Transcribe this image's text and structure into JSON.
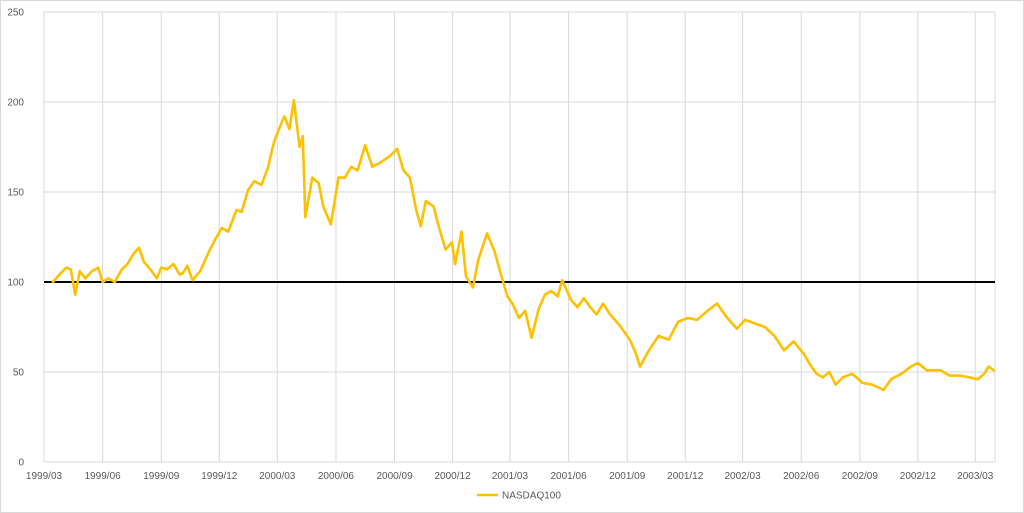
{
  "chart_data": {
    "type": "line",
    "title": "",
    "xlabel": "",
    "ylabel": "",
    "ylim": [
      0,
      250
    ],
    "yticks": [
      0,
      50,
      100,
      150,
      200,
      250
    ],
    "xticks": [
      "1999/03",
      "1999/06",
      "1999/09",
      "1999/12",
      "2000/03",
      "2000/06",
      "2000/09",
      "2000/12",
      "2001/03",
      "2001/06",
      "2001/09",
      "2001/12",
      "2002/03",
      "2002/06",
      "2002/09",
      "2002/12",
      "2003/03"
    ],
    "xlim": [
      "1999/03",
      "2003/04"
    ],
    "grid": {
      "horizontal": true,
      "vertical": true
    },
    "legend": {
      "position": "bottom",
      "entries": [
        "NASDAQ100"
      ]
    },
    "reference_line": {
      "value": 100,
      "color": "#000000"
    },
    "colors": {
      "series": "#ffc000",
      "grid": "#d9d9d9",
      "reference": "#000000"
    },
    "series": [
      {
        "name": "NASDAQ100",
        "points": [
          [
            "1999/03/15",
            100
          ],
          [
            "1999/03/25",
            104
          ],
          [
            "1999/04/05",
            108
          ],
          [
            "1999/04/12",
            107
          ],
          [
            "1999/04/19",
            93
          ],
          [
            "1999/04/26",
            106
          ],
          [
            "1999/05/05",
            102
          ],
          [
            "1999/05/15",
            106
          ],
          [
            "1999/05/25",
            108
          ],
          [
            "1999/06/01",
            100
          ],
          [
            "1999/06/10",
            102
          ],
          [
            "1999/06/20",
            100
          ],
          [
            "1999/07/01",
            107
          ],
          [
            "1999/07/10",
            110
          ],
          [
            "1999/07/20",
            116
          ],
          [
            "1999/07/28",
            119
          ],
          [
            "1999/08/05",
            111
          ],
          [
            "1999/08/15",
            107
          ],
          [
            "1999/08/25",
            102
          ],
          [
            "1999/09/01",
            108
          ],
          [
            "1999/09/10",
            107
          ],
          [
            "1999/09/20",
            110
          ],
          [
            "1999/09/30",
            104
          ],
          [
            "1999/10/05",
            105
          ],
          [
            "1999/10/12",
            109
          ],
          [
            "1999/10/20",
            101
          ],
          [
            "1999/11/01",
            106
          ],
          [
            "1999/11/15",
            117
          ],
          [
            "1999/11/25",
            124
          ],
          [
            "1999/12/05",
            130
          ],
          [
            "1999/12/15",
            128
          ],
          [
            "1999/12/28",
            140
          ],
          [
            "2000/01/05",
            139
          ],
          [
            "2000/01/15",
            151
          ],
          [
            "2000/01/25",
            156
          ],
          [
            "2000/02/05",
            154
          ],
          [
            "2000/02/15",
            163
          ],
          [
            "2000/02/25",
            178
          ],
          [
            "2000/03/05",
            186
          ],
          [
            "2000/03/12",
            192
          ],
          [
            "2000/03/20",
            185
          ],
          [
            "2000/03/27",
            201
          ],
          [
            "2000/04/05",
            175
          ],
          [
            "2000/04/10",
            181
          ],
          [
            "2000/04/14",
            136
          ],
          [
            "2000/04/25",
            158
          ],
          [
            "2000/05/05",
            155
          ],
          [
            "2000/05/12",
            142
          ],
          [
            "2000/05/24",
            132
          ],
          [
            "2000/06/05",
            158
          ],
          [
            "2000/06/15",
            158
          ],
          [
            "2000/06/25",
            164
          ],
          [
            "2000/07/05",
            162
          ],
          [
            "2000/07/17",
            176
          ],
          [
            "2000/07/28",
            164
          ],
          [
            "2000/08/08",
            166
          ],
          [
            "2000/08/25",
            170
          ],
          [
            "2000/09/05",
            174
          ],
          [
            "2000/09/15",
            162
          ],
          [
            "2000/09/25",
            158
          ],
          [
            "2000/10/05",
            140
          ],
          [
            "2000/10/12",
            131
          ],
          [
            "2000/10/20",
            145
          ],
          [
            "2000/11/01",
            142
          ],
          [
            "2000/11/10",
            130
          ],
          [
            "2000/11/20",
            118
          ],
          [
            "2000/11/30",
            122
          ],
          [
            "2000/12/05",
            110
          ],
          [
            "2000/12/15",
            128
          ],
          [
            "2000/12/22",
            103
          ],
          [
            "2001/01/02",
            97
          ],
          [
            "2001/01/10",
            112
          ],
          [
            "2001/01/24",
            127
          ],
          [
            "2001/02/05",
            117
          ],
          [
            "2001/02/15",
            104
          ],
          [
            "2001/02/25",
            92
          ],
          [
            "2001/03/05",
            88
          ],
          [
            "2001/03/15",
            80
          ],
          [
            "2001/03/25",
            84
          ],
          [
            "2001/04/04",
            69
          ],
          [
            "2001/04/15",
            85
          ],
          [
            "2001/04/25",
            93
          ],
          [
            "2001/05/05",
            95
          ],
          [
            "2001/05/15",
            92
          ],
          [
            "2001/05/22",
            101
          ],
          [
            "2001/06/05",
            90
          ],
          [
            "2001/06/15",
            86
          ],
          [
            "2001/06/25",
            91
          ],
          [
            "2001/07/05",
            86
          ],
          [
            "2001/07/15",
            82
          ],
          [
            "2001/07/25",
            88
          ],
          [
            "2001/08/05",
            82
          ],
          [
            "2001/08/20",
            76
          ],
          [
            "2001/09/05",
            68
          ],
          [
            "2001/09/15",
            60
          ],
          [
            "2001/09/21",
            53
          ],
          [
            "2001/10/05",
            62
          ],
          [
            "2001/10/20",
            70
          ],
          [
            "2001/11/05",
            68
          ],
          [
            "2001/11/20",
            78
          ],
          [
            "2001/12/05",
            80
          ],
          [
            "2001/12/20",
            79
          ],
          [
            "2002/01/05",
            84
          ],
          [
            "2002/01/20",
            88
          ],
          [
            "2002/02/05",
            80
          ],
          [
            "2002/02/20",
            74
          ],
          [
            "2002/03/05",
            79
          ],
          [
            "2002/03/20",
            77
          ],
          [
            "2002/04/05",
            75
          ],
          [
            "2002/04/20",
            70
          ],
          [
            "2002/05/05",
            62
          ],
          [
            "2002/05/20",
            67
          ],
          [
            "2002/06/05",
            60
          ],
          [
            "2002/06/15",
            54
          ],
          [
            "2002/06/25",
            49
          ],
          [
            "2002/07/05",
            47
          ],
          [
            "2002/07/15",
            50
          ],
          [
            "2002/07/25",
            43
          ],
          [
            "2002/08/05",
            47
          ],
          [
            "2002/08/20",
            49
          ],
          [
            "2002/09/05",
            44
          ],
          [
            "2002/09/20",
            43
          ],
          [
            "2002/10/08",
            40
          ],
          [
            "2002/10/20",
            46
          ],
          [
            "2002/11/05",
            49
          ],
          [
            "2002/11/20",
            53
          ],
          [
            "2002/12/01",
            55
          ],
          [
            "2002/12/15",
            51
          ],
          [
            "2003/01/05",
            51
          ],
          [
            "2003/01/20",
            48
          ],
          [
            "2003/02/05",
            48
          ],
          [
            "2003/02/20",
            47
          ],
          [
            "2003/03/05",
            46
          ],
          [
            "2003/03/15",
            49
          ],
          [
            "2003/03/22",
            53
          ],
          [
            "2003/03/30",
            51
          ]
        ]
      }
    ]
  }
}
